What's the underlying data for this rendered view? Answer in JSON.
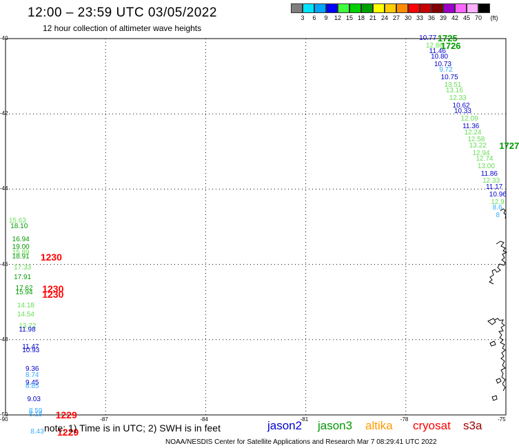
{
  "header": {
    "title": "12:00 – 23:59 UTC 03/05/2022",
    "subtitle": "12 hour collection of altimeter wave heights"
  },
  "color_scale": {
    "unit": "(ft)",
    "colors": [
      "#7f7f7f",
      "#00e5ff",
      "#00a5ff",
      "#0000ff",
      "#3dff3d",
      "#00d100",
      "#00a000",
      "#ffff00",
      "#ffcc00",
      "#ff8c00",
      "#ff0000",
      "#c80000",
      "#800000",
      "#9b00c8",
      "#ff66ff",
      "#ffb0ff",
      "#000000"
    ],
    "ticks": [
      "3",
      "6",
      "9",
      "12",
      "15",
      "18",
      "21",
      "24",
      "27",
      "30",
      "33",
      "36",
      "39",
      "42",
      "45",
      "70"
    ]
  },
  "axes": {
    "lon_labels": [
      "-90",
      "-87",
      "-84",
      "-81",
      "-78",
      "-75"
    ],
    "lat_labels": [
      "-40",
      "-42",
      "-44",
      "-46",
      "-48",
      "-50"
    ]
  },
  "satellite_colors": {
    "jason2": "#0000cc",
    "jason3": "#009900",
    "altika": "#ff9900",
    "cryosat": "#ff0000",
    "s3a": "#990000"
  },
  "observations": [
    {
      "lon": -77.6,
      "lat": -40.0,
      "value": "10.77",
      "color": "#0000cc"
    },
    {
      "lon": -77.4,
      "lat": -40.2,
      "value": "12.86",
      "color": "#66dd55"
    },
    {
      "lon": -77.3,
      "lat": -40.35,
      "value": "11.46",
      "color": "#0000cc"
    },
    {
      "lon": -77.25,
      "lat": -40.5,
      "value": "10.80",
      "color": "#0000cc"
    },
    {
      "lon": -77.15,
      "lat": -40.7,
      "value": "10.73",
      "color": "#0000cc"
    },
    {
      "lon": -77.0,
      "lat": -40.85,
      "value": "9.72",
      "color": "#33aaff"
    },
    {
      "lon": -76.95,
      "lat": -41.05,
      "value": "10.75",
      "color": "#0000cc"
    },
    {
      "lon": -76.85,
      "lat": -41.25,
      "value": "13.51",
      "color": "#66dd55"
    },
    {
      "lon": -76.8,
      "lat": -41.4,
      "value": "13.16",
      "color": "#66dd55"
    },
    {
      "lon": -76.7,
      "lat": -41.6,
      "value": "12.33",
      "color": "#66dd55"
    },
    {
      "lon": -76.6,
      "lat": -41.8,
      "value": "10.62",
      "color": "#0000cc"
    },
    {
      "lon": -76.55,
      "lat": -41.95,
      "value": "10.33",
      "color": "#0000cc"
    },
    {
      "lon": -76.35,
      "lat": -42.15,
      "value": "12.09",
      "color": "#66dd55"
    },
    {
      "lon": -76.3,
      "lat": -42.35,
      "value": "11.36",
      "color": "#0000cc"
    },
    {
      "lon": -76.25,
      "lat": -42.5,
      "value": "12.24",
      "color": "#66dd55"
    },
    {
      "lon": -76.15,
      "lat": -42.7,
      "value": "12.58",
      "color": "#66dd55"
    },
    {
      "lon": -76.1,
      "lat": -42.85,
      "value": "13.22",
      "color": "#66dd55"
    },
    {
      "lon": -76.0,
      "lat": -43.05,
      "value": "12.94",
      "color": "#66dd55"
    },
    {
      "lon": -75.9,
      "lat": -43.2,
      "value": "12.74",
      "color": "#66dd55"
    },
    {
      "lon": -75.85,
      "lat": -43.4,
      "value": "13.00",
      "color": "#66dd55"
    },
    {
      "lon": -75.75,
      "lat": -43.6,
      "value": "11.86",
      "color": "#0000cc"
    },
    {
      "lon": -75.7,
      "lat": -43.8,
      "value": "12.33",
      "color": "#66dd55"
    },
    {
      "lon": -75.6,
      "lat": -43.95,
      "value": "11.17",
      "color": "#0000cc"
    },
    {
      "lon": -75.5,
      "lat": -44.15,
      "value": "10.96",
      "color": "#0000cc"
    },
    {
      "lon": -75.45,
      "lat": -44.35,
      "value": "12.9",
      "color": "#66dd55"
    },
    {
      "lon": -75.4,
      "lat": -44.5,
      "value": "8.6",
      "color": "#33aaff"
    },
    {
      "lon": -75.3,
      "lat": -44.7,
      "value": "8",
      "color": "#33aaff"
    },
    {
      "lon": -89.9,
      "lat": -44.85,
      "value": "15.63",
      "color": "#66dd55"
    },
    {
      "lon": -89.85,
      "lat": -45.0,
      "value": "18.10",
      "color": "#009900"
    },
    {
      "lon": -89.8,
      "lat": -45.35,
      "value": "16.94",
      "color": "#009900"
    },
    {
      "lon": -89.8,
      "lat": -45.55,
      "value": "19.00",
      "color": "#009900"
    },
    {
      "lon": -89.8,
      "lat": -45.7,
      "value": "15.89",
      "color": "#66dd55"
    },
    {
      "lon": -89.8,
      "lat": -45.8,
      "value": "18.91",
      "color": "#009900"
    },
    {
      "lon": -89.75,
      "lat": -46.1,
      "value": "17.33",
      "color": "#66dd55"
    },
    {
      "lon": -89.75,
      "lat": -46.35,
      "value": "17.91",
      "color": "#009900"
    },
    {
      "lon": -89.7,
      "lat": -46.65,
      "value": "17.62",
      "color": "#009900"
    },
    {
      "lon": -89.7,
      "lat": -46.75,
      "value": "15.94",
      "color": "#009900"
    },
    {
      "lon": -89.65,
      "lat": -47.1,
      "value": "14.18",
      "color": "#66dd55"
    },
    {
      "lon": -89.65,
      "lat": -47.35,
      "value": "14.54",
      "color": "#66dd55"
    },
    {
      "lon": -89.6,
      "lat": -47.65,
      "value": "13.72",
      "color": "#66dd55"
    },
    {
      "lon": -89.6,
      "lat": -47.75,
      "value": "11.98",
      "color": "#0000cc"
    },
    {
      "lon": -89.5,
      "lat": -48.2,
      "value": "11.47",
      "color": "#0000cc"
    },
    {
      "lon": -89.5,
      "lat": -48.3,
      "value": "10.93",
      "color": "#0000cc"
    },
    {
      "lon": -89.4,
      "lat": -48.8,
      "value": "9.36",
      "color": "#0000cc"
    },
    {
      "lon": -89.4,
      "lat": -48.95,
      "value": "8.74",
      "color": "#33aaff"
    },
    {
      "lon": -89.4,
      "lat": -49.15,
      "value": "9.45",
      "color": "#0000cc"
    },
    {
      "lon": -89.4,
      "lat": -49.25,
      "value": "8.85",
      "color": "#33aaff"
    },
    {
      "lon": -89.35,
      "lat": -49.6,
      "value": "9.03",
      "color": "#0000cc"
    },
    {
      "lon": -89.3,
      "lat": -49.9,
      "value": "8.59",
      "color": "#33aaff"
    },
    {
      "lon": -89.3,
      "lat": -50.0,
      "value": "8.18",
      "color": "#33aaff"
    },
    {
      "lon": -89.25,
      "lat": -50.45,
      "value": "8.43",
      "color": "#33aaff"
    }
  ],
  "time_labels": [
    {
      "lon": -77.05,
      "lat": -40.0,
      "value": "1725",
      "color": "#009900"
    },
    {
      "lon": -76.95,
      "lat": -40.2,
      "value": "1726",
      "color": "#009900"
    },
    {
      "lon": -75.2,
      "lat": -42.85,
      "value": "1727",
      "color": "#009900"
    },
    {
      "lon": -88.95,
      "lat": -45.8,
      "value": "1230",
      "color": "#ff0000"
    },
    {
      "lon": -88.9,
      "lat": -46.65,
      "value": "1230",
      "color": "#ff0000"
    },
    {
      "lon": -88.9,
      "lat": -46.8,
      "value": "1230",
      "color": "#ff0000"
    },
    {
      "lon": -88.5,
      "lat": -50.0,
      "value": "1229",
      "color": "#ff0000"
    },
    {
      "lon": -88.45,
      "lat": -50.45,
      "value": "1229",
      "color": "#ff0000"
    }
  ],
  "note": "note: 1) Time is in UTC; 2) SWH is in feet",
  "legend": {
    "jason2": "jason2",
    "jason3": "jason3",
    "altika": "altika",
    "cryosat": "cryosat",
    "s3a": "s3a"
  },
  "footer": "NOAA/NESDIS Center for Satellite Applications and Research   Mar  7 08:29:41 UTC 2022"
}
